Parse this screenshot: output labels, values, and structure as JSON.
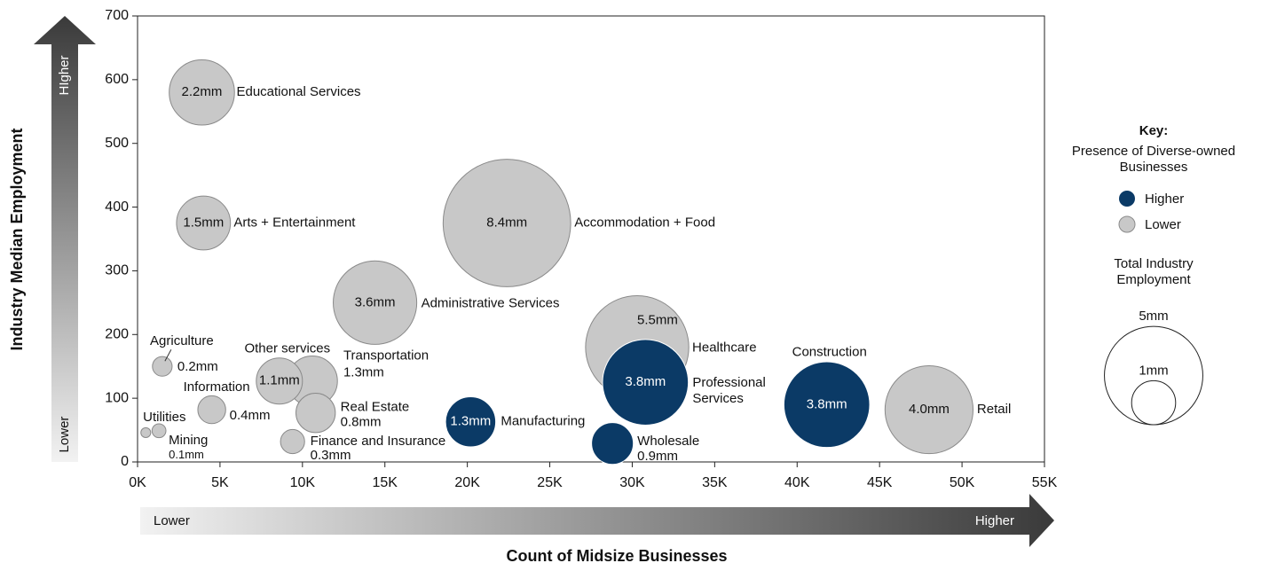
{
  "chart_data": {
    "type": "bubble",
    "x_label": "Count of Midsize Businesses",
    "y_label": "Industry Median Employment",
    "x_arrow_labels": [
      "Lower",
      "Higher"
    ],
    "y_arrow_labels": [
      "Lower",
      "HIgher"
    ],
    "xlim": [
      0,
      55000
    ],
    "xticks": [
      {
        "value": 0,
        "label": "0K"
      },
      {
        "value": 5000,
        "label": "5K"
      },
      {
        "value": 10000,
        "label": "10K"
      },
      {
        "value": 15000,
        "label": "15K"
      },
      {
        "value": 20000,
        "label": "20K"
      },
      {
        "value": 25000,
        "label": "25K"
      },
      {
        "value": 30000,
        "label": "30K"
      },
      {
        "value": 35000,
        "label": "35K"
      },
      {
        "value": 40000,
        "label": "40K"
      },
      {
        "value": 45000,
        "label": "45K"
      },
      {
        "value": 50000,
        "label": "50K"
      },
      {
        "value": 55000,
        "label": "55K"
      }
    ],
    "ylim": [
      0,
      700
    ],
    "yticks": [
      0,
      100,
      200,
      300,
      400,
      500,
      600,
      700
    ],
    "grid": false,
    "series": [
      {
        "name": "Higher",
        "color": "#0b3a66"
      },
      {
        "name": "Lower",
        "color": "#c8c8c8"
      }
    ],
    "points": [
      {
        "label": "Educational Services",
        "x": 3900,
        "y": 580,
        "size": 2.2,
        "size_label": "2.2mm",
        "group": 1
      },
      {
        "label": "Arts + Entertainment",
        "x": 4000,
        "y": 375,
        "size": 1.5,
        "size_label": "1.5mm",
        "group": 1
      },
      {
        "label": "Accommodation + Food",
        "x": 22400,
        "y": 375,
        "size": 8.4,
        "size_label": "8.4mm",
        "group": 1
      },
      {
        "label": "Administrative Services",
        "x": 14400,
        "y": 250,
        "size": 3.6,
        "size_label": "3.6mm",
        "group": 1
      },
      {
        "label": "Healthcare",
        "x": 30300,
        "y": 180,
        "size": 5.5,
        "size_label": "5.5mm",
        "group": 1
      },
      {
        "label": "Professional Services",
        "x": 30800,
        "y": 125,
        "size": 3.8,
        "size_label": "3.8mm",
        "group": 0
      },
      {
        "label": "Construction",
        "x": 41800,
        "y": 90,
        "size": 3.8,
        "size_label": "3.8mm",
        "group": 0
      },
      {
        "label": "Retail",
        "x": 48000,
        "y": 82,
        "size": 4.0,
        "size_label": "4.0mm",
        "group": 1
      },
      {
        "label": "Manufacturing",
        "x": 20200,
        "y": 63,
        "size": 1.3,
        "size_label": "1.3mm",
        "group": 0
      },
      {
        "label": "Wholesale",
        "x": 28800,
        "y": 29,
        "size": 0.9,
        "size_label": "0.9mm",
        "group": 0
      },
      {
        "label": "Transportation",
        "x": 10600,
        "y": 127,
        "size": 1.3,
        "size_label": "1.3mm",
        "group": 1
      },
      {
        "label": "Other services",
        "x": 8600,
        "y": 127,
        "size": 1.1,
        "size_label": "1.1mm",
        "group": 1
      },
      {
        "label": "Real Estate",
        "x": 10800,
        "y": 77,
        "size": 0.8,
        "size_label": "0.8mm",
        "group": 1
      },
      {
        "label": "Finance and Insurance",
        "x": 9400,
        "y": 32,
        "size": 0.3,
        "size_label": "0.3mm",
        "group": 1
      },
      {
        "label": "Information",
        "x": 4500,
        "y": 82,
        "size": 0.4,
        "size_label": "0.4mm",
        "group": 1
      },
      {
        "label": "Agriculture",
        "x": 1500,
        "y": 150,
        "size": 0.2,
        "size_label": "0.2mm",
        "group": 1
      },
      {
        "label": "Utilities",
        "x": 500,
        "y": 46,
        "size": 0.05,
        "size_label": null,
        "group": 1
      },
      {
        "label": "Mining",
        "x": 1300,
        "y": 49,
        "size": 0.1,
        "size_label": "0.1mm",
        "group": 1
      }
    ],
    "key": {
      "title": "Key:",
      "subtitle": "Presence of Diverse-owned Businesses",
      "size_title": "Total Industry Employment",
      "size_items": [
        {
          "size": 5,
          "label": "5mm"
        },
        {
          "size": 1,
          "label": "1mm"
        }
      ]
    }
  }
}
